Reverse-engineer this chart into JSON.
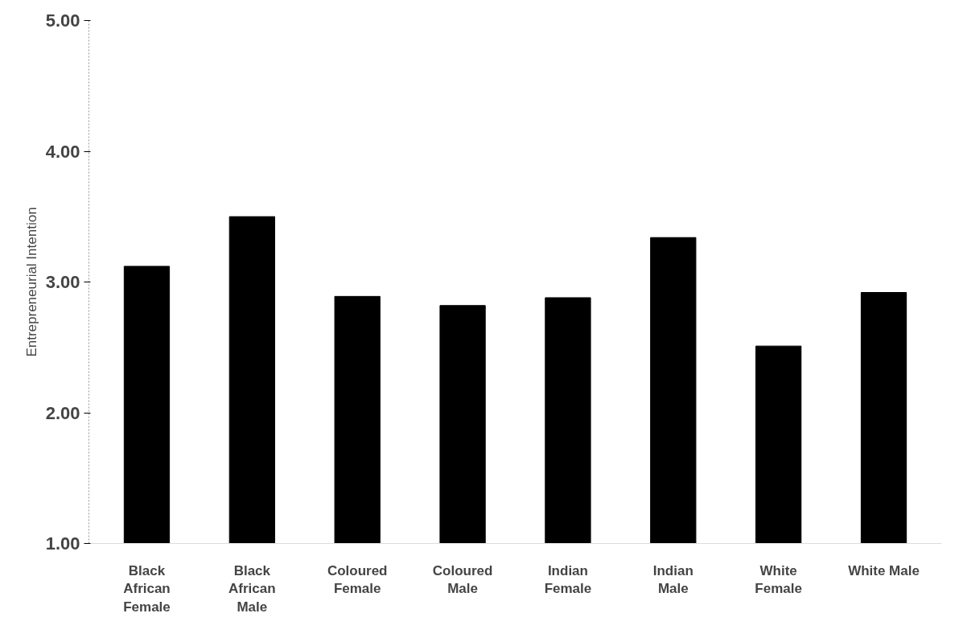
{
  "chart_data": {
    "type": "bar",
    "ylabel": "Entrepreneurial Intention",
    "categories": [
      "Black\nAfrican\nFemale",
      "Black\nAfrican\nMale",
      "Coloured\nFemale",
      "Coloured\nMale",
      "Indian\nFemale",
      "Indian\nMale",
      "White\nFemale",
      "White Male"
    ],
    "values": [
      3.12,
      3.5,
      2.89,
      2.82,
      2.88,
      3.34,
      2.51,
      2.92
    ],
    "color": "#000000",
    "ylim": [
      1,
      5
    ],
    "yticks": [
      {
        "value": 1,
        "label": "1.00"
      },
      {
        "value": 2,
        "label": "2.00"
      },
      {
        "value": 3,
        "label": "3.00"
      },
      {
        "value": 4,
        "label": "4.00"
      },
      {
        "value": 5,
        "label": "5.00"
      }
    ],
    "grid": false
  }
}
